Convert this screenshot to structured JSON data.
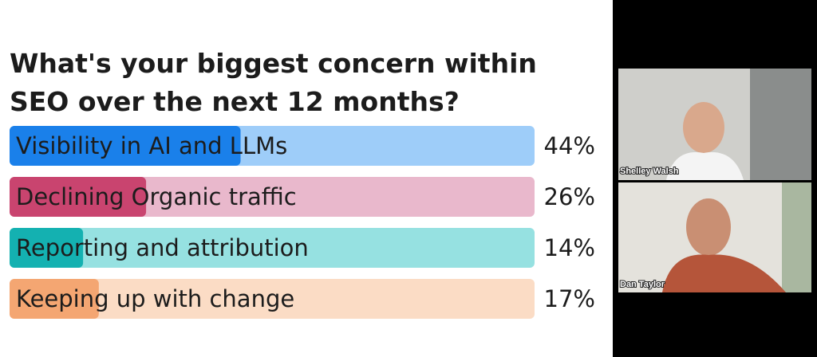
{
  "chart_data": {
    "type": "bar",
    "orientation": "horizontal",
    "title": "What's your biggest concern within SEO over the next 12 months?",
    "categories": [
      "Visibility in AI and LLMs",
      "Declining Organic traffic",
      "Reporting and attribution",
      "Keeping up with change"
    ],
    "values": [
      44,
      26,
      14,
      17
    ],
    "value_labels": [
      "44%",
      "26%",
      "14%",
      "17%"
    ],
    "colors": [
      "#1a80ea",
      "#c9446f",
      "#14b1b1",
      "#f4a672"
    ],
    "track_colors": [
      "#9ecdf9",
      "#e9b8cc",
      "#96e1e1",
      "#fbdcc5"
    ],
    "xlim": [
      0,
      100
    ]
  },
  "participants": [
    "Shelley Walsh",
    "Dan Taylor"
  ]
}
